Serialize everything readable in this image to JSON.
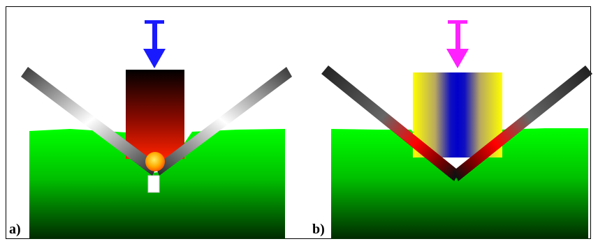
{
  "panels": [
    {
      "id": "a",
      "label": "a)",
      "arrow_color": "#1a1aff"
    },
    {
      "id": "b",
      "label": "b)",
      "arrow_color": "#ff22ff"
    }
  ],
  "colors": {
    "die_green_top": "#00ff00",
    "die_green_bottom": "#002a00",
    "sheet_dark": "#1a1a1a",
    "sheet_light": "#ffffff",
    "heated_red": "#ff0000",
    "punch_a_top": "#000000",
    "punch_a_bottom": "#ff2200",
    "punch_b_edge": "#ffff00",
    "punch_b_center": "#0000cc",
    "hot_spot": "#ffcc33"
  }
}
